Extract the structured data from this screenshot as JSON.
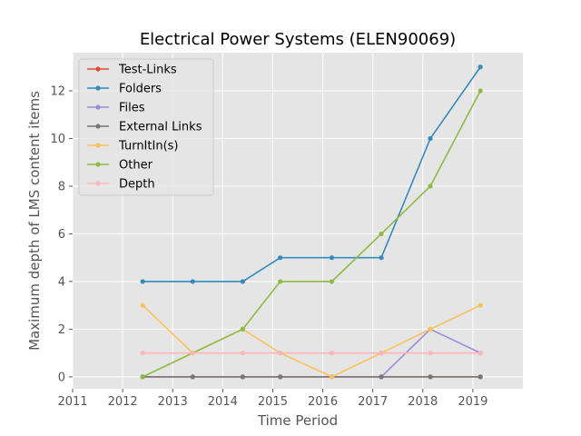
{
  "chart_data": {
    "type": "line",
    "title": "Electrical Power Systems (ELEN90069)",
    "xlabel": "Time Period",
    "ylabel": "Maximum depth of LMS content items",
    "xlim": [
      2011,
      2020
    ],
    "ylim": [
      -0.5,
      13.6
    ],
    "x_ticks": [
      2011,
      2012,
      2013,
      2014,
      2015,
      2016,
      2017,
      2018,
      2019
    ],
    "y_ticks": [
      0,
      2,
      4,
      6,
      8,
      10,
      12
    ],
    "x": [
      2012.4,
      2013.4,
      2014.4,
      2015.15,
      2016.18,
      2017.17,
      2018.15,
      2019.15
    ],
    "grid": true,
    "legend_position": "top-left",
    "background": "#e5e5e5",
    "series": [
      {
        "name": "Test-Links",
        "color": "#e24a33",
        "values": [
          0,
          0,
          0,
          0,
          0,
          0,
          0,
          0
        ]
      },
      {
        "name": "Folders",
        "color": "#348abd",
        "values": [
          4,
          4,
          4,
          5,
          5,
          5,
          10,
          13
        ]
      },
      {
        "name": "Files",
        "color": "#988ed5",
        "values": [
          0,
          0,
          0,
          0,
          0,
          0,
          2,
          1
        ]
      },
      {
        "name": "External Links",
        "color": "#777777",
        "values": [
          0,
          0,
          0,
          0,
          0,
          0,
          0,
          0
        ]
      },
      {
        "name": "TurnItIn(s)",
        "color": "#fbc15e",
        "values": [
          3,
          1,
          2,
          1,
          0,
          1,
          2,
          3
        ]
      },
      {
        "name": "Other",
        "color": "#8eba42",
        "values": [
          0,
          1,
          2,
          4,
          4,
          6,
          8,
          12
        ]
      },
      {
        "name": "Depth",
        "color": "#ffb5b8",
        "values": [
          1,
          1,
          1,
          1,
          1,
          1,
          1,
          1
        ]
      }
    ]
  }
}
